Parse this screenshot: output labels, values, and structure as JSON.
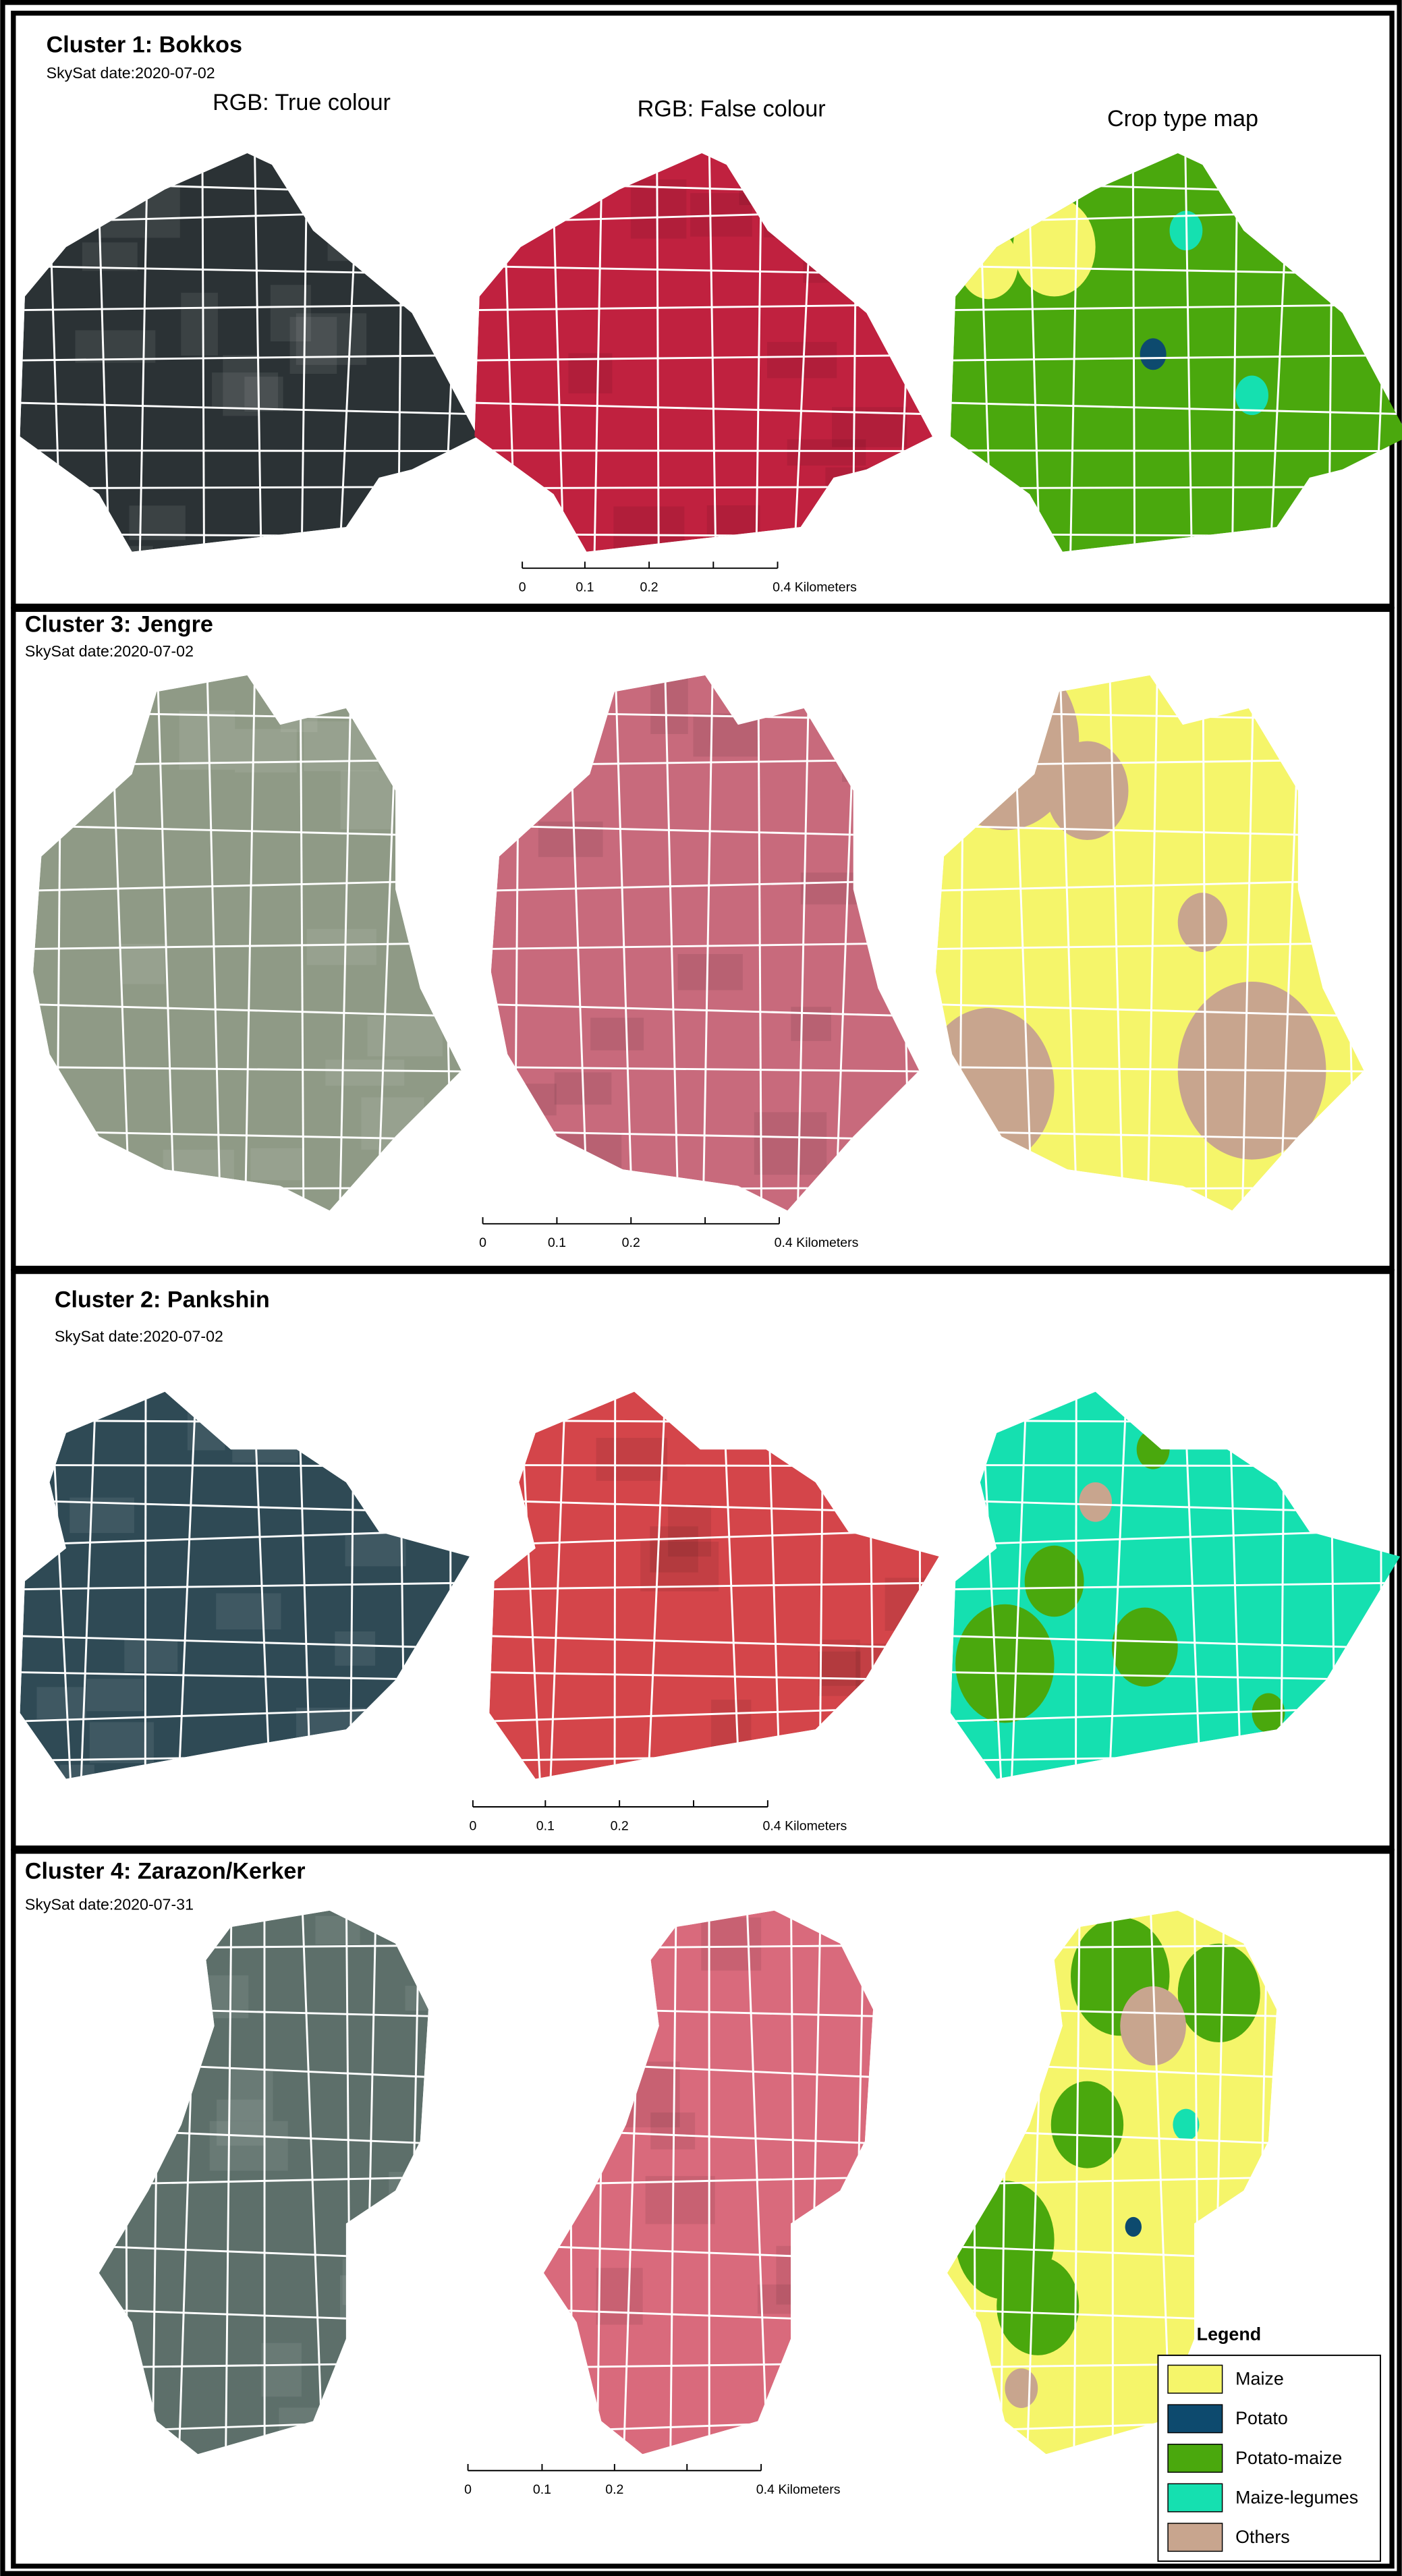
{
  "column_headers": [
    "RGB: True colour",
    "RGB: False colour",
    "Crop type map"
  ],
  "panels": [
    {
      "title": "Cluster 1: Bokkos",
      "date": "SkySat date:2020-07-02",
      "scale_bar": [
        "0",
        "0.1",
        "0.2",
        "0.4 Kilometers"
      ]
    },
    {
      "title": "Cluster 3: Jengre",
      "date": "SkySat date:2020-07-02",
      "scale_bar": [
        "0",
        "0.1",
        "0.2",
        "0.4 Kilometers"
      ]
    },
    {
      "title": "Cluster 2: Pankshin",
      "date": "SkySat date:2020-07-02",
      "scale_bar": [
        "0",
        "0.1",
        "0.2",
        "0.4 Kilometers"
      ]
    },
    {
      "title": "Cluster 4: Zarazon/Kerker",
      "date": "SkySat date:2020-07-31",
      "scale_bar": [
        "0",
        "0.1",
        "0.2",
        "0.4 Kilometers"
      ]
    }
  ],
  "legend": {
    "title": "Legend",
    "items": [
      {
        "label": "Maize",
        "color": "#f5f56a"
      },
      {
        "label": "Potato",
        "color": "#0d4a6e"
      },
      {
        "label": "Potato-maize",
        "color": "#4aa80d"
      },
      {
        "label": "Maize-legumes",
        "color": "#15e0b0"
      },
      {
        "label": "Others",
        "color": "#c8a58e"
      }
    ]
  }
}
